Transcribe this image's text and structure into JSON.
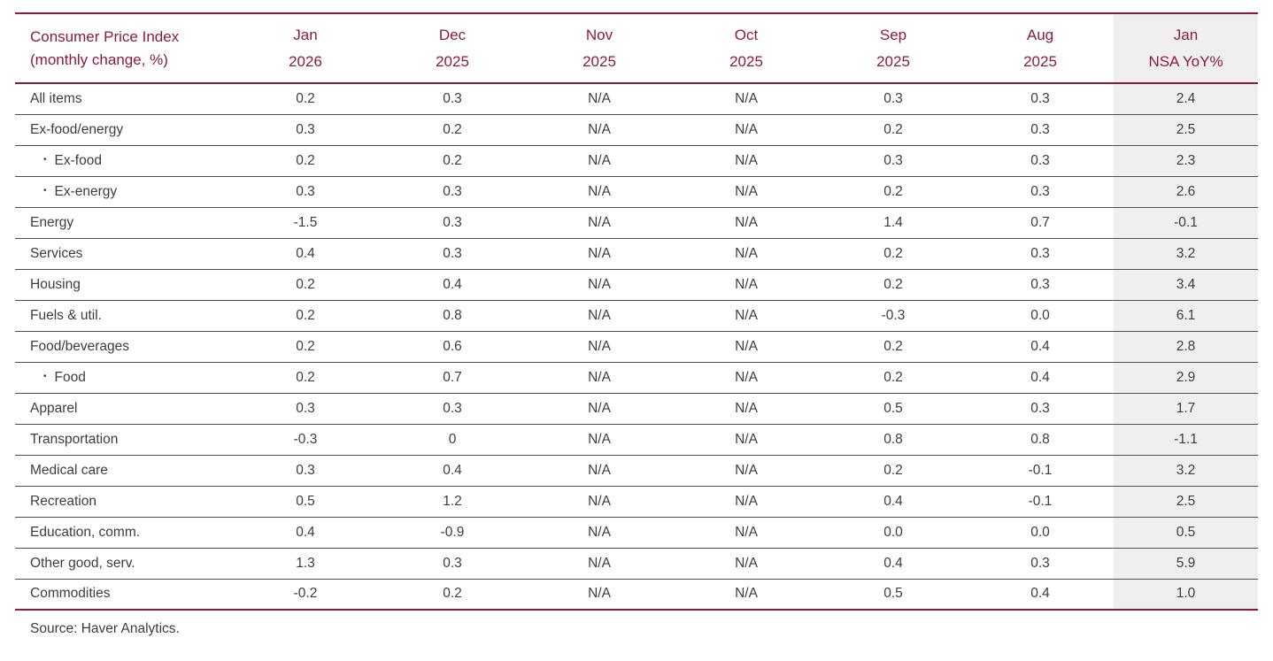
{
  "colors": {
    "accent_maroon": "#8e1a3a",
    "text": "#3d3d3d",
    "row_separator": "#4e4e4e",
    "highlight_column_bg": "#efefef",
    "page_bg": "#ffffff"
  },
  "table": {
    "header": {
      "title_line1": "Consumer Price Index",
      "title_line2": "(monthly change, %)",
      "columns": [
        {
          "month": "Jan",
          "year": "2026"
        },
        {
          "month": "Dec",
          "year": "2025"
        },
        {
          "month": "Nov",
          "year": "2025"
        },
        {
          "month": "Oct",
          "year": "2025"
        },
        {
          "month": "Sep",
          "year": "2025"
        },
        {
          "month": "Aug",
          "year": "2025"
        },
        {
          "month": "Jan",
          "year": "NSA YoY%"
        }
      ]
    },
    "bullet": "•"
  },
  "chart_data": {
    "type": "table",
    "title": "Consumer Price Index (monthly change, %)",
    "columns": [
      "Jan 2026",
      "Dec 2025",
      "Nov 2025",
      "Oct 2025",
      "Sep 2025",
      "Aug 2025",
      "Jan NSA YoY%"
    ],
    "highlighted_column": "Jan NSA YoY%",
    "rows": [
      {
        "label": "All items",
        "indent": false,
        "values": [
          "0.2",
          "0.3",
          "N/A",
          "N/A",
          "0.3",
          "0.3",
          "2.4"
        ]
      },
      {
        "label": "Ex-food/energy",
        "indent": false,
        "values": [
          "0.3",
          "0.2",
          "N/A",
          "N/A",
          "0.2",
          "0.3",
          "2.5"
        ]
      },
      {
        "label": "Ex-food",
        "indent": true,
        "values": [
          "0.2",
          "0.2",
          "N/A",
          "N/A",
          "0.3",
          "0.3",
          "2.3"
        ]
      },
      {
        "label": "Ex-energy",
        "indent": true,
        "values": [
          "0.3",
          "0.3",
          "N/A",
          "N/A",
          "0.2",
          "0.3",
          "2.6"
        ]
      },
      {
        "label": "Energy",
        "indent": false,
        "values": [
          "-1.5",
          "0.3",
          "N/A",
          "N/A",
          "1.4",
          "0.7",
          "-0.1"
        ]
      },
      {
        "label": "Services",
        "indent": false,
        "values": [
          "0.4",
          "0.3",
          "N/A",
          "N/A",
          "0.2",
          "0.3",
          "3.2"
        ]
      },
      {
        "label": "Housing",
        "indent": false,
        "values": [
          "0.2",
          "0.4",
          "N/A",
          "N/A",
          "0.2",
          "0.3",
          "3.4"
        ]
      },
      {
        "label": "Fuels & util.",
        "indent": false,
        "values": [
          "0.2",
          "0.8",
          "N/A",
          "N/A",
          "-0.3",
          "0.0",
          "6.1"
        ]
      },
      {
        "label": "Food/beverages",
        "indent": false,
        "values": [
          "0.2",
          "0.6",
          "N/A",
          "N/A",
          "0.2",
          "0.4",
          "2.8"
        ]
      },
      {
        "label": "Food",
        "indent": true,
        "values": [
          "0.2",
          "0.7",
          "N/A",
          "N/A",
          "0.2",
          "0.4",
          "2.9"
        ]
      },
      {
        "label": "Apparel",
        "indent": false,
        "values": [
          "0.3",
          "0.3",
          "N/A",
          "N/A",
          "0.5",
          "0.3",
          "1.7"
        ]
      },
      {
        "label": "Transportation",
        "indent": false,
        "values": [
          "-0.3",
          "0",
          "N/A",
          "N/A",
          "0.8",
          "0.8",
          "-1.1"
        ]
      },
      {
        "label": "Medical care",
        "indent": false,
        "values": [
          "0.3",
          "0.4",
          "N/A",
          "N/A",
          "0.2",
          "-0.1",
          "3.2"
        ]
      },
      {
        "label": "Recreation",
        "indent": false,
        "values": [
          "0.5",
          "1.2",
          "N/A",
          "N/A",
          "0.4",
          "-0.1",
          "2.5"
        ]
      },
      {
        "label": "Education, comm.",
        "indent": false,
        "values": [
          "0.4",
          "-0.9",
          "N/A",
          "N/A",
          "0.0",
          "0.0",
          "0.5"
        ]
      },
      {
        "label": "Other good, serv.",
        "indent": false,
        "values": [
          "1.3",
          "0.3",
          "N/A",
          "N/A",
          "0.4",
          "0.3",
          "5.9"
        ]
      },
      {
        "label": "Commodities",
        "indent": false,
        "values": [
          "-0.2",
          "0.2",
          "N/A",
          "N/A",
          "0.5",
          "0.4",
          "1.0"
        ]
      }
    ]
  },
  "footer": {
    "source": "Source: Haver Analytics."
  }
}
